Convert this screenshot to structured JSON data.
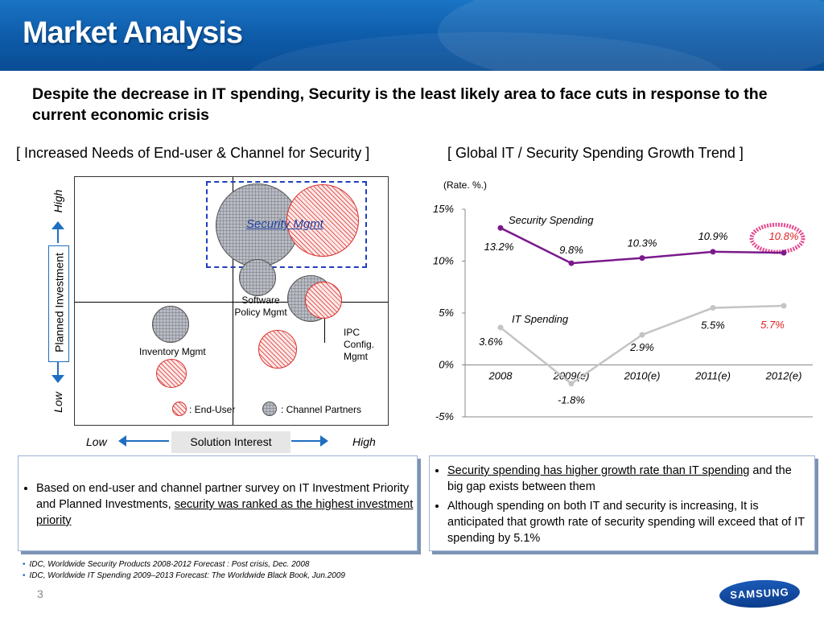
{
  "slide": {
    "title": "Market Analysis",
    "subtitle": "Despite the decrease in IT spending, Security is the least likely area to face cuts in response to the current economic crisis",
    "page_number": "3",
    "logo_text": "SAMSUNG"
  },
  "left_section": {
    "title": "[ Increased Needs of End-user & Channel for Security ]",
    "y_axis_label": "Planned Investment",
    "y_high": "High",
    "y_low": "Low",
    "x_axis_label": "Solution Interest",
    "x_low": "Low",
    "x_high": "High",
    "labels": {
      "security_mgmt": "Security Mgmt",
      "software_policy": "Software Policy Mgmt",
      "ipc_config": "IPC Config. Mgmt",
      "inventory": "Inventory Mgmt"
    },
    "legend": {
      "end_user": ": End-User",
      "channel": ": Channel Partners"
    },
    "colors": {
      "end_user": "#d9302c",
      "channel": "#8e929c",
      "highlight_box": "#1f3fbf"
    }
  },
  "right_section": {
    "title": "[ Global IT / Security Spending Growth Trend ]",
    "unit": "(Rate. %.)"
  },
  "chart_data": {
    "type": "line",
    "title": "[ Global IT / Security Spending Growth Trend ]",
    "unit": "(Rate. %.)",
    "categories": [
      "2008",
      "2009(e)",
      "2010(e)",
      "2011(e)",
      "2012(e)"
    ],
    "y_ticks": [
      "15%",
      "10%",
      "5%",
      "0%",
      "-5%"
    ],
    "ylim": [
      -5,
      15
    ],
    "series": [
      {
        "name": "Security Spending",
        "values": [
          13.2,
          9.8,
          10.3,
          10.9,
          10.8
        ],
        "labels": [
          "13.2%",
          "9.8%",
          "10.3%",
          "10.9%",
          "10.8%"
        ],
        "color": "#7a1a8c"
      },
      {
        "name": "IT Spending",
        "values": [
          3.6,
          -1.8,
          2.9,
          5.5,
          5.7
        ],
        "labels": [
          "3.6%",
          "-1.8%",
          "2.9%",
          "5.5%",
          "5.7%"
        ],
        "color": "#c4c4c4"
      }
    ],
    "highlight_color": "#e0287a",
    "last_label_color": "#e02020"
  },
  "notes": {
    "left": {
      "prefix": "Based on end-user and channel partner survey on IT Investment Priority and Planned Investments, ",
      "underlined": "security was ranked as the highest investment priority"
    },
    "right": {
      "item1_underlined": "Security spending has higher growth rate than IT spending",
      "item1_rest": " and the big gap exists between them",
      "item2": "Although spending on both IT and security is increasing, It is anticipated that growth rate of security spending will exceed that of IT spending by 5.1%"
    }
  },
  "sources": [
    "IDC, Worldwide Security Products 2008-2012 Forecast : Post crisis, Dec. 2008",
    "IDC, Worldwide IT Spending 2009–2013 Forecast: The Worldwide Black Book, Jun.2009"
  ]
}
